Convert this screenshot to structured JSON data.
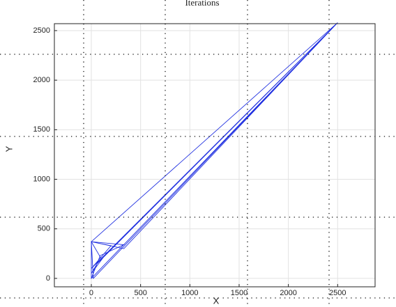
{
  "chart_data": {
    "type": "line",
    "title": "Iterations",
    "x_label": "X",
    "y_label": "Y",
    "xlim": [
      -375,
      2880
    ],
    "ylim": [
      -85,
      2570
    ],
    "xticks": [
      0,
      500,
      1000,
      1500,
      2000,
      2500
    ],
    "yticks": [
      0,
      500,
      1000,
      1500,
      2000,
      2500
    ],
    "grid": true,
    "series": [
      {
        "color": "#1f2fe0",
        "x": [
          0,
          2500,
          0,
          0,
          330,
          90,
          0,
          330,
          2500,
          100,
          0,
          200,
          0,
          2500,
          60,
          0,
          150,
          2500,
          330,
          0,
          20,
          2500
        ],
        "y": [
          370,
          2580,
          0,
          370,
          340,
          230,
          0,
          340,
          2580,
          200,
          370,
          330,
          100,
          2580,
          150,
          50,
          250,
          2580,
          300,
          370,
          0,
          2580
        ]
      }
    ]
  }
}
